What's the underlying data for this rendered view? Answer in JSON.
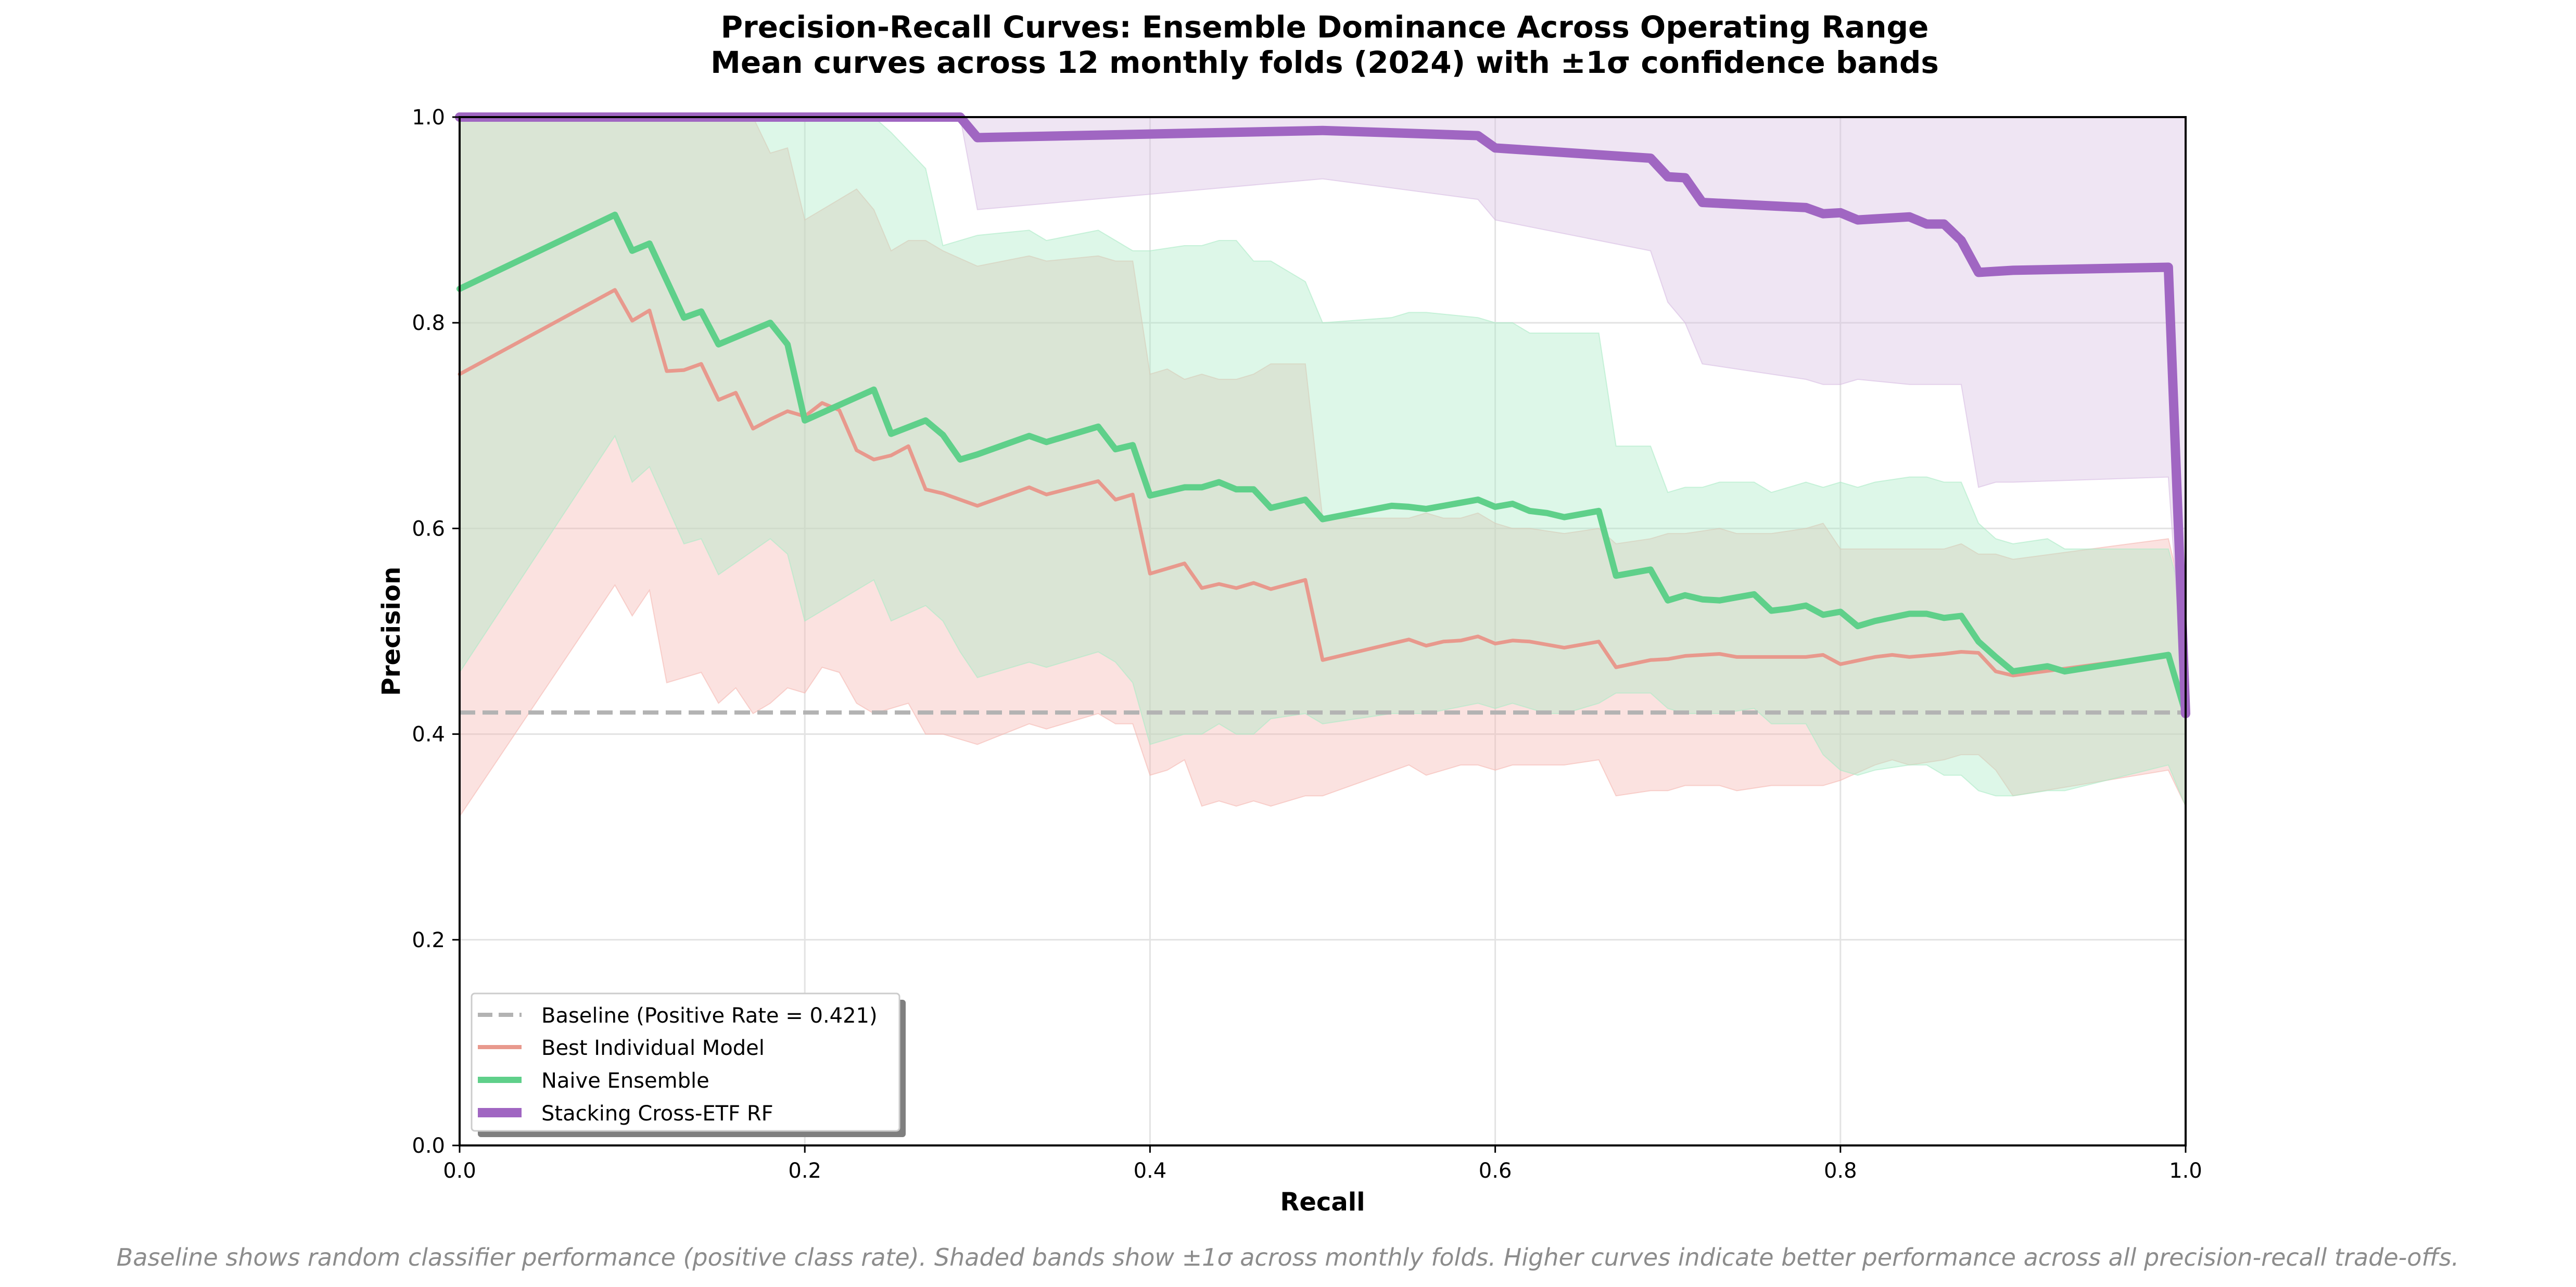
{
  "chart_data": {
    "type": "line",
    "title": "Precision-Recall Curves: Ensemble Dominance Across Operating Range",
    "subtitle": "Mean curves across 12 monthly folds (2024) with ±1σ confidence bands",
    "xlabel": "Recall",
    "ylabel": "Precision",
    "xlim": [
      0,
      1
    ],
    "ylim": [
      0,
      1
    ],
    "xticks": [
      "0.0",
      "0.2",
      "0.4",
      "0.6",
      "0.8",
      "1.0"
    ],
    "yticks": [
      "0.0",
      "0.2",
      "0.4",
      "0.6",
      "0.8",
      "1.0"
    ],
    "grid": true,
    "legend_position": "lower-left",
    "footnote": "Baseline shows random classifier performance (positive class rate). Shaded bands show ±1σ across monthly folds. Higher curves indicate better performance across all precision-recall trade-offs.",
    "baseline": {
      "name": "Baseline (Positive Rate = 0.421)",
      "value": 0.421,
      "color": "#b3b3b3"
    },
    "series": [
      {
        "name": "Best Individual Model",
        "color": "#e8998d",
        "band_color": "#f5b7b1",
        "x": [
          0.0,
          0.09,
          0.1,
          0.11,
          0.12,
          0.13,
          0.14,
          0.15,
          0.16,
          0.17,
          0.18,
          0.19,
          0.2,
          0.21,
          0.22,
          0.23,
          0.24,
          0.25,
          0.26,
          0.27,
          0.28,
          0.3,
          0.33,
          0.34,
          0.37,
          0.38,
          0.39,
          0.4,
          0.41,
          0.42,
          0.43,
          0.44,
          0.45,
          0.46,
          0.47,
          0.49,
          0.5,
          0.55,
          0.56,
          0.57,
          0.58,
          0.59,
          0.6,
          0.61,
          0.62,
          0.64,
          0.66,
          0.67,
          0.69,
          0.7,
          0.71,
          0.73,
          0.74,
          0.76,
          0.78,
          0.79,
          0.8,
          0.82,
          0.83,
          0.84,
          0.86,
          0.87,
          0.88,
          0.89,
          0.9,
          0.99,
          1.0
        ],
        "y": [
          0.75,
          0.832,
          0.802,
          0.812,
          0.753,
          0.754,
          0.76,
          0.725,
          0.732,
          0.697,
          0.706,
          0.714,
          0.709,
          0.722,
          0.715,
          0.676,
          0.667,
          0.671,
          0.68,
          0.638,
          0.634,
          0.622,
          0.64,
          0.633,
          0.646,
          0.628,
          0.633,
          0.556,
          0.561,
          0.566,
          0.542,
          0.546,
          0.542,
          0.547,
          0.541,
          0.55,
          0.472,
          0.492,
          0.486,
          0.49,
          0.491,
          0.495,
          0.488,
          0.491,
          0.49,
          0.484,
          0.49,
          0.465,
          0.472,
          0.473,
          0.476,
          0.478,
          0.475,
          0.475,
          0.475,
          0.477,
          0.468,
          0.475,
          0.477,
          0.475,
          0.478,
          0.48,
          0.479,
          0.461,
          0.457,
          0.477,
          0.42
        ],
        "upper": [
          1.0,
          1.0,
          1.0,
          1.0,
          1.0,
          1.0,
          1.0,
          1.0,
          1.0,
          1.0,
          0.965,
          0.97,
          0.9,
          0.91,
          0.92,
          0.93,
          0.91,
          0.87,
          0.88,
          0.88,
          0.87,
          0.855,
          0.865,
          0.86,
          0.865,
          0.86,
          0.86,
          0.75,
          0.755,
          0.745,
          0.75,
          0.745,
          0.745,
          0.75,
          0.76,
          0.76,
          0.61,
          0.61,
          0.615,
          0.61,
          0.61,
          0.615,
          0.605,
          0.6,
          0.6,
          0.595,
          0.6,
          0.585,
          0.59,
          0.595,
          0.595,
          0.6,
          0.595,
          0.595,
          0.6,
          0.605,
          0.58,
          0.58,
          0.58,
          0.58,
          0.58,
          0.585,
          0.575,
          0.575,
          0.57,
          0.59,
          0.52
        ],
        "lower": [
          0.32,
          0.545,
          0.515,
          0.54,
          0.45,
          0.455,
          0.46,
          0.43,
          0.445,
          0.42,
          0.43,
          0.445,
          0.44,
          0.465,
          0.46,
          0.43,
          0.42,
          0.425,
          0.43,
          0.4,
          0.4,
          0.39,
          0.41,
          0.405,
          0.42,
          0.41,
          0.41,
          0.36,
          0.365,
          0.375,
          0.33,
          0.335,
          0.33,
          0.335,
          0.33,
          0.34,
          0.34,
          0.37,
          0.36,
          0.365,
          0.37,
          0.37,
          0.365,
          0.37,
          0.37,
          0.37,
          0.375,
          0.34,
          0.345,
          0.345,
          0.35,
          0.35,
          0.345,
          0.35,
          0.35,
          0.35,
          0.355,
          0.37,
          0.375,
          0.37,
          0.375,
          0.38,
          0.38,
          0.365,
          0.34,
          0.365,
          0.33
        ]
      },
      {
        "name": "Naive Ensemble",
        "color": "#5fd08a",
        "band_color": "#abebc6",
        "x": [
          0.0,
          0.09,
          0.1,
          0.11,
          0.13,
          0.14,
          0.15,
          0.18,
          0.19,
          0.2,
          0.24,
          0.25,
          0.27,
          0.28,
          0.29,
          0.3,
          0.33,
          0.34,
          0.37,
          0.38,
          0.39,
          0.4,
          0.42,
          0.43,
          0.44,
          0.45,
          0.46,
          0.47,
          0.49,
          0.5,
          0.54,
          0.55,
          0.56,
          0.59,
          0.6,
          0.61,
          0.62,
          0.63,
          0.64,
          0.66,
          0.67,
          0.69,
          0.7,
          0.71,
          0.72,
          0.73,
          0.75,
          0.76,
          0.77,
          0.78,
          0.79,
          0.8,
          0.81,
          0.82,
          0.84,
          0.85,
          0.86,
          0.87,
          0.88,
          0.89,
          0.9,
          0.92,
          0.93,
          0.99,
          1.0
        ],
        "y": [
          0.833,
          0.905,
          0.87,
          0.877,
          0.805,
          0.811,
          0.779,
          0.8,
          0.779,
          0.705,
          0.735,
          0.692,
          0.705,
          0.691,
          0.667,
          0.672,
          0.69,
          0.684,
          0.699,
          0.677,
          0.681,
          0.632,
          0.64,
          0.64,
          0.645,
          0.638,
          0.638,
          0.62,
          0.628,
          0.609,
          0.622,
          0.621,
          0.619,
          0.628,
          0.621,
          0.624,
          0.617,
          0.615,
          0.611,
          0.617,
          0.554,
          0.56,
          0.53,
          0.535,
          0.531,
          0.53,
          0.536,
          0.52,
          0.522,
          0.525,
          0.516,
          0.519,
          0.505,
          0.51,
          0.517,
          0.517,
          0.513,
          0.515,
          0.49,
          0.475,
          0.461,
          0.466,
          0.461,
          0.477,
          0.42
        ],
        "upper": [
          1.0,
          1.0,
          1.0,
          1.0,
          1.0,
          1.0,
          1.0,
          1.0,
          1.0,
          1.0,
          1.0,
          0.985,
          0.95,
          0.875,
          0.88,
          0.885,
          0.89,
          0.88,
          0.89,
          0.88,
          0.87,
          0.87,
          0.875,
          0.875,
          0.88,
          0.88,
          0.86,
          0.86,
          0.84,
          0.8,
          0.805,
          0.81,
          0.81,
          0.805,
          0.8,
          0.8,
          0.79,
          0.79,
          0.79,
          0.79,
          0.68,
          0.68,
          0.635,
          0.64,
          0.64,
          0.645,
          0.645,
          0.635,
          0.64,
          0.645,
          0.64,
          0.645,
          0.64,
          0.645,
          0.65,
          0.65,
          0.645,
          0.645,
          0.605,
          0.59,
          0.585,
          0.59,
          0.58,
          0.58,
          0.52
        ],
        "lower": [
          0.46,
          0.69,
          0.645,
          0.66,
          0.585,
          0.59,
          0.555,
          0.59,
          0.575,
          0.51,
          0.55,
          0.51,
          0.525,
          0.51,
          0.48,
          0.455,
          0.47,
          0.465,
          0.48,
          0.47,
          0.45,
          0.39,
          0.4,
          0.4,
          0.41,
          0.4,
          0.4,
          0.415,
          0.42,
          0.41,
          0.42,
          0.42,
          0.42,
          0.43,
          0.425,
          0.43,
          0.425,
          0.42,
          0.42,
          0.43,
          0.44,
          0.44,
          0.425,
          0.42,
          0.42,
          0.42,
          0.425,
          0.41,
          0.41,
          0.41,
          0.38,
          0.365,
          0.36,
          0.365,
          0.37,
          0.37,
          0.36,
          0.36,
          0.345,
          0.34,
          0.34,
          0.345,
          0.345,
          0.37,
          0.33
        ]
      },
      {
        "name": "Stacking Cross-ETF RF",
        "color": "#a066c2",
        "band_color": "#d7bde2",
        "x": [
          0.0,
          0.29,
          0.3,
          0.5,
          0.59,
          0.6,
          0.69,
          0.7,
          0.71,
          0.72,
          0.78,
          0.79,
          0.8,
          0.81,
          0.84,
          0.85,
          0.86,
          0.87,
          0.88,
          0.89,
          0.9,
          0.99,
          1.0
        ],
        "y": [
          1.0,
          1.0,
          0.98,
          0.987,
          0.982,
          0.97,
          0.96,
          0.942,
          0.941,
          0.917,
          0.912,
          0.906,
          0.907,
          0.9,
          0.903,
          0.896,
          0.896,
          0.88,
          0.849,
          0.85,
          0.851,
          0.854,
          0.42
        ],
        "upper": [
          1.0,
          1.0,
          1.0,
          1.0,
          1.0,
          1.0,
          1.0,
          1.0,
          1.0,
          1.0,
          1.0,
          1.0,
          1.0,
          1.0,
          1.0,
          1.0,
          1.0,
          1.0,
          1.0,
          1.0,
          1.0,
          1.0,
          1.0
        ],
        "lower": [
          1.0,
          1.0,
          0.91,
          0.94,
          0.92,
          0.9,
          0.87,
          0.82,
          0.8,
          0.76,
          0.745,
          0.74,
          0.74,
          0.745,
          0.74,
          0.74,
          0.74,
          0.74,
          0.64,
          0.645,
          0.645,
          0.65,
          0.41
        ]
      }
    ]
  }
}
